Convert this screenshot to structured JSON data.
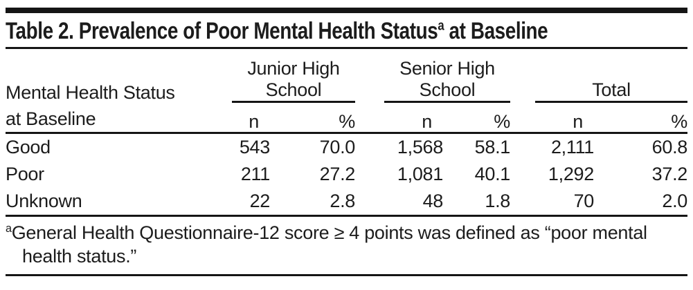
{
  "table": {
    "title": {
      "prefix": "Table 2. Prevalence of Poor Mental Health Status",
      "superscript": "a",
      "suffix": " at Baseline"
    },
    "row_header": {
      "line1": "Mental Health Status",
      "line2": "at Baseline"
    },
    "column_groups": [
      {
        "line1": "Junior High",
        "line2": "School"
      },
      {
        "line1": "Senior High",
        "line2": "School"
      },
      {
        "line1": "Total",
        "line2": ""
      }
    ],
    "sub_headers": {
      "n": "n",
      "pct": "%"
    },
    "rows": [
      {
        "label": "Good",
        "values": [
          "543",
          "70.0",
          "1,568",
          "58.1",
          "2,111",
          "60.8"
        ]
      },
      {
        "label": "Poor",
        "values": [
          "211",
          "27.2",
          "1,081",
          "40.1",
          "1,292",
          "37.2"
        ]
      },
      {
        "label": "Unknown",
        "values": [
          "22",
          "2.8",
          "48",
          "1.8",
          "70",
          "2.0"
        ]
      }
    ],
    "footnote": {
      "marker": "a",
      "text": "General Health Questionnaire-12 score ≥ 4 points was defined as “poor mental health status.”"
    }
  },
  "colors": {
    "text": "#1c1c1c",
    "rule": "#151515",
    "background": "#ffffff"
  },
  "chart_data": {
    "type": "table",
    "title": "Table 2. Prevalence of Poor Mental Health Status(a) at Baseline",
    "columns": [
      "Mental Health Status at Baseline",
      "Junior High School n",
      "Junior High School %",
      "Senior High School n",
      "Senior High School %",
      "Total n",
      "Total %"
    ],
    "rows": [
      [
        "Good",
        543,
        70.0,
        1568,
        58.1,
        2111,
        60.8
      ],
      [
        "Poor",
        211,
        27.2,
        1081,
        40.1,
        1292,
        37.2
      ],
      [
        "Unknown",
        22,
        2.8,
        48,
        1.8,
        70,
        2.0
      ]
    ],
    "footnote": "General Health Questionnaire-12 score ≥ 4 points was defined as “poor mental health status.”"
  }
}
